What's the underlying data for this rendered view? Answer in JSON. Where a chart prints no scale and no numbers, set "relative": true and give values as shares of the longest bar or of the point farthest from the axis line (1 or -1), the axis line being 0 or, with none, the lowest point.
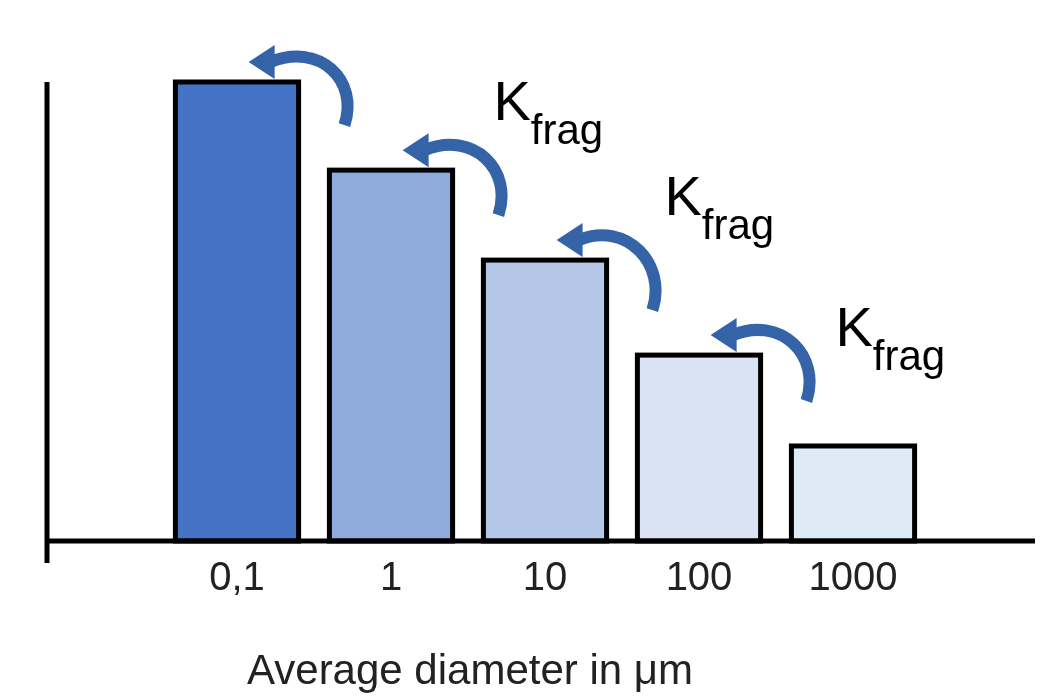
{
  "chart_data": {
    "type": "bar",
    "relative": true,
    "categories": [
      "0,1",
      "1",
      "10",
      "100",
      "1000"
    ],
    "values": [
      1,
      0.808,
      0.612,
      0.405,
      0.207
    ],
    "colors": [
      "#4472c4",
      "#8faadc",
      "#b4c7e7",
      "#dae3f3",
      "#deebf7"
    ],
    "xlabel": "Average diameter in μm",
    "annotations": [
      "K$_{frag}$",
      "K$_{frag}$",
      "K$_{frag}$"
    ]
  }
}
